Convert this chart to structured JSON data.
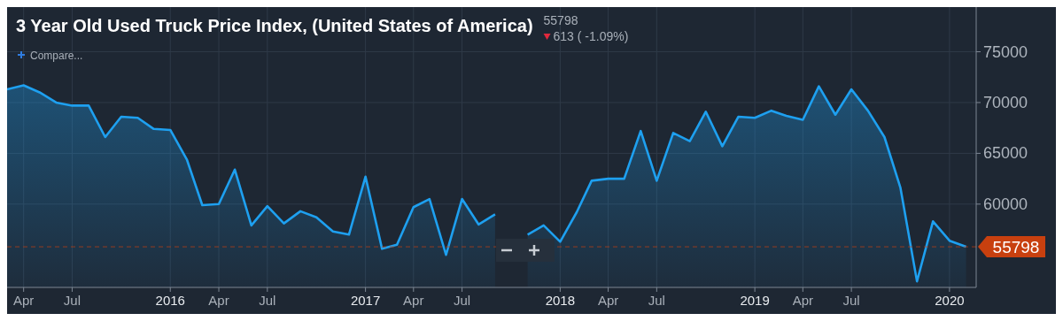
{
  "chart_data": {
    "type": "area",
    "title": "3 Year Old Used Truck Price Index, (United States of America)",
    "annotations": [
      "55798",
      "613 ( -1.09%)",
      "Compare..."
    ],
    "x": [
      "2015-03",
      "2015-04",
      "2015-05",
      "2015-06",
      "2015-07",
      "2015-08",
      "2015-09",
      "2015-10",
      "2015-11",
      "2015-12",
      "2016-01",
      "2016-02",
      "2016-03",
      "2016-04",
      "2016-05",
      "2016-06",
      "2016-07",
      "2016-08",
      "2016-09",
      "2016-10",
      "2016-11",
      "2016-12",
      "2017-01",
      "2017-02",
      "2017-03",
      "2017-04",
      "2017-05",
      "2017-06",
      "2017-07",
      "2017-08",
      "2017-09",
      "2017-10",
      "2017-11",
      "2017-12",
      "2018-01",
      "2018-02",
      "2018-03",
      "2018-04",
      "2018-05",
      "2018-06",
      "2018-07",
      "2018-08",
      "2018-09",
      "2018-10",
      "2018-11",
      "2018-12",
      "2019-01",
      "2019-02",
      "2019-03",
      "2019-04",
      "2019-05",
      "2019-06",
      "2019-07",
      "2019-08",
      "2019-09",
      "2019-10",
      "2019-11",
      "2019-12",
      "2020-01",
      "2020-02"
    ],
    "series": [
      {
        "color": "#1ea0f0",
        "values": [
          71300,
          71700,
          71000,
          70000,
          69700,
          69700,
          66600,
          68600,
          68500,
          67400,
          67300,
          64400,
          59900,
          60000,
          63400,
          57900,
          59800,
          58100,
          59300,
          58700,
          57300,
          57000,
          62700,
          55600,
          56000,
          59700,
          60500,
          55000,
          60500,
          58000,
          59000,
          null,
          57000,
          57900,
          56300,
          59200,
          62300,
          62500,
          62500,
          67200,
          62300,
          67000,
          66200,
          69100,
          65700,
          68600,
          68500,
          69200,
          68700,
          68300,
          71600,
          68800,
          71300,
          69200,
          66600,
          61600,
          52400,
          58300,
          56400,
          55798
        ]
      }
    ],
    "xlim": [
      "2015-03-01",
      "2020-02-20"
    ],
    "xticks": [
      {
        "value": "2015-04",
        "label": "Apr"
      },
      {
        "value": "2015-07",
        "label": "Jul"
      },
      {
        "value": "2016",
        "label": "2016"
      },
      {
        "value": "2016-04",
        "label": "Apr"
      },
      {
        "value": "2016-07",
        "label": "Jul"
      },
      {
        "value": "2017",
        "label": "2017"
      },
      {
        "value": "2017-04",
        "label": "Apr"
      },
      {
        "value": "2017-07",
        "label": "Jul"
      },
      {
        "value": "2018",
        "label": "2018"
      },
      {
        "value": "2018-04",
        "label": "Apr"
      },
      {
        "value": "2018-07",
        "label": "Jul"
      },
      {
        "value": "2019",
        "label": "2019"
      },
      {
        "value": "2019-04",
        "label": "Apr"
      },
      {
        "value": "2019-07",
        "label": "Jul"
      },
      {
        "value": "2020",
        "label": "2020"
      }
    ],
    "ylim": [
      51800,
      79400
    ],
    "yticks": [
      60000,
      65000,
      70000,
      75000
    ],
    "ref_lines": [
      {
        "axis": "y",
        "value": 55798,
        "label": "55798",
        "color": "#c8400f",
        "line_style": "dashed"
      }
    ],
    "grid": true
  }
}
